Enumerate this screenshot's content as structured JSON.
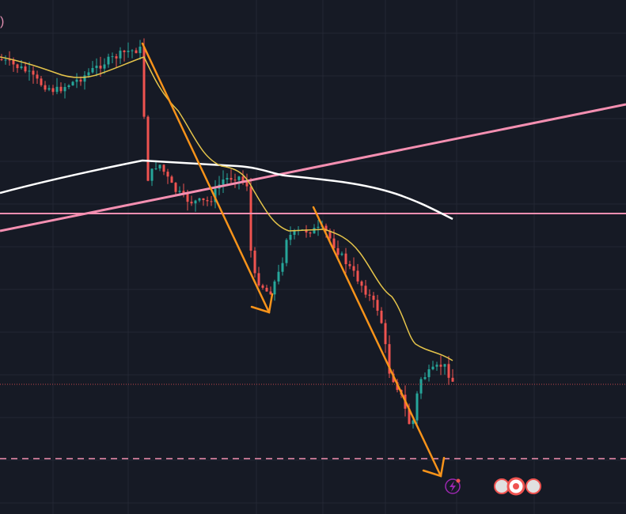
{
  "legend": {
    "fragment": ")"
  }
}
